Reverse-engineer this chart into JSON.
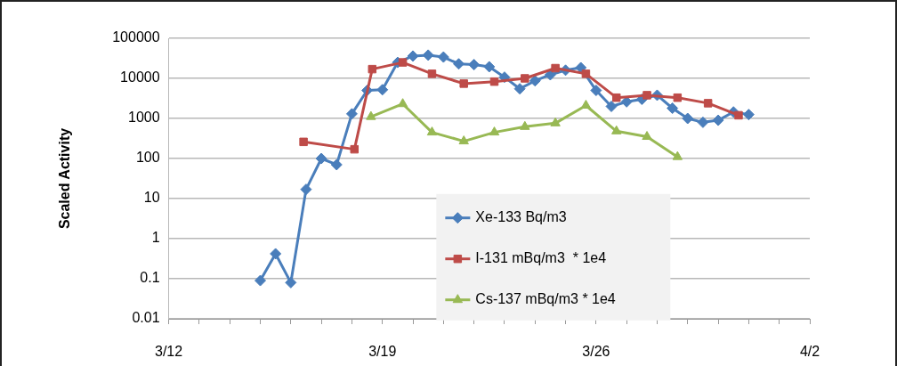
{
  "chart_data": {
    "type": "line",
    "ylabel": "Scaled Activity",
    "log": "y",
    "ylim": [
      0.01,
      100000
    ],
    "yticks": [
      0.01,
      0.1,
      1,
      10,
      100,
      1000,
      10000,
      100000
    ],
    "xlim": [
      "--03-12",
      "--04-02"
    ],
    "xticks": [
      {
        "value": "--03-12",
        "label": "3/12"
      },
      {
        "value": "--03-13",
        "label": null
      },
      {
        "value": "--03-14",
        "label": null
      },
      {
        "value": "--03-15",
        "label": null
      },
      {
        "value": "--03-16",
        "label": null
      },
      {
        "value": "--03-17",
        "label": null
      },
      {
        "value": "--03-18",
        "label": null
      },
      {
        "value": "--03-19",
        "label": "3/19"
      },
      {
        "value": "--03-20",
        "label": null
      },
      {
        "value": "--03-21",
        "label": null
      },
      {
        "value": "--03-22",
        "label": null
      },
      {
        "value": "--03-23",
        "label": null
      },
      {
        "value": "--03-24",
        "label": null
      },
      {
        "value": "--03-25",
        "label": null
      },
      {
        "value": "--03-26",
        "label": "3/26"
      },
      {
        "value": "--03-27",
        "label": null
      },
      {
        "value": "--03-28",
        "label": null
      },
      {
        "value": "--03-29",
        "label": null
      },
      {
        "value": "--03-30",
        "label": null
      },
      {
        "value": "--03-31",
        "label": null
      },
      {
        "value": "--04-01",
        "label": null
      },
      {
        "value": "--04-02",
        "label": "4/2"
      }
    ],
    "grid": "y",
    "legend": "bottom",
    "series": [
      {
        "name": "Xe-133 Bq/m3",
        "color": "#4a7ebb",
        "marker": "diamond",
        "x": [
          "--03-15T00:00",
          "--03-15T12:00",
          "--03-16T00:00",
          "--03-16T12:00",
          "--03-17T00:00",
          "--03-17T12:00",
          "--03-18T00:00",
          "--03-18T12:00",
          "--03-19T00:00",
          "--03-19T12:00",
          "--03-20T00:00",
          "--03-20T12:00",
          "--03-21T00:00",
          "--03-21T12:00",
          "--03-22T00:00",
          "--03-22T12:00",
          "--03-23T00:00",
          "--03-23T12:00",
          "--03-24T00:00",
          "--03-24T12:00",
          "--03-25T00:00",
          "--03-25T12:00",
          "--03-26T00:00",
          "--03-26T12:00",
          "--03-27T00:00",
          "--03-27T12:00",
          "--03-28T00:00",
          "--03-28T12:00",
          "--03-29T00:00",
          "--03-29T12:00",
          "--03-30T00:00",
          "--03-30T12:00",
          "--03-31T00:00"
        ],
        "values": [
          0.09,
          0.42,
          0.08,
          17,
          100,
          70,
          1300,
          5000,
          5200,
          25000,
          36000,
          38000,
          34000,
          23000,
          22000,
          19500,
          10700,
          5500,
          8700,
          12300,
          16000,
          18500,
          5000,
          2000,
          2600,
          3000,
          3800,
          1800,
          1000,
          800,
          900,
          1450,
          1250
        ]
      },
      {
        "name": "I-131 mBq/m3  * 1e4",
        "color": "#be4b48",
        "marker": "square",
        "x": [
          "--03-16T10:00",
          "--03-18T02:00",
          "--03-18T16:00",
          "--03-19T16:00",
          "--03-20T15:00",
          "--03-21T16:00",
          "--03-22T16:00",
          "--03-23T16:00",
          "--03-24T16:00",
          "--03-25T16:00",
          "--03-26T16:00",
          "--03-27T16:00",
          "--03-28T16:00",
          "--03-29T16:00",
          "--03-30T16:00"
        ],
        "values": [
          260,
          170,
          17000,
          25000,
          13000,
          7400,
          8300,
          10000,
          18000,
          13000,
          3300,
          3800,
          3300,
          2400,
          1200
        ]
      },
      {
        "name": "Cs-137 mBq/m3 * 1e4",
        "color": "#98b954",
        "marker": "triangle",
        "x": [
          "--03-18T15:00",
          "--03-19T16:00",
          "--03-20T15:00",
          "--03-21T16:00",
          "--03-22T16:00",
          "--03-23T16:00",
          "--03-24T16:00",
          "--03-25T16:00",
          "--03-26T16:00",
          "--03-27T16:00",
          "--03-28T16:00"
        ],
        "values": [
          1100,
          2300,
          450,
          270,
          450,
          620,
          760,
          2100,
          480,
          350,
          110
        ]
      }
    ]
  }
}
